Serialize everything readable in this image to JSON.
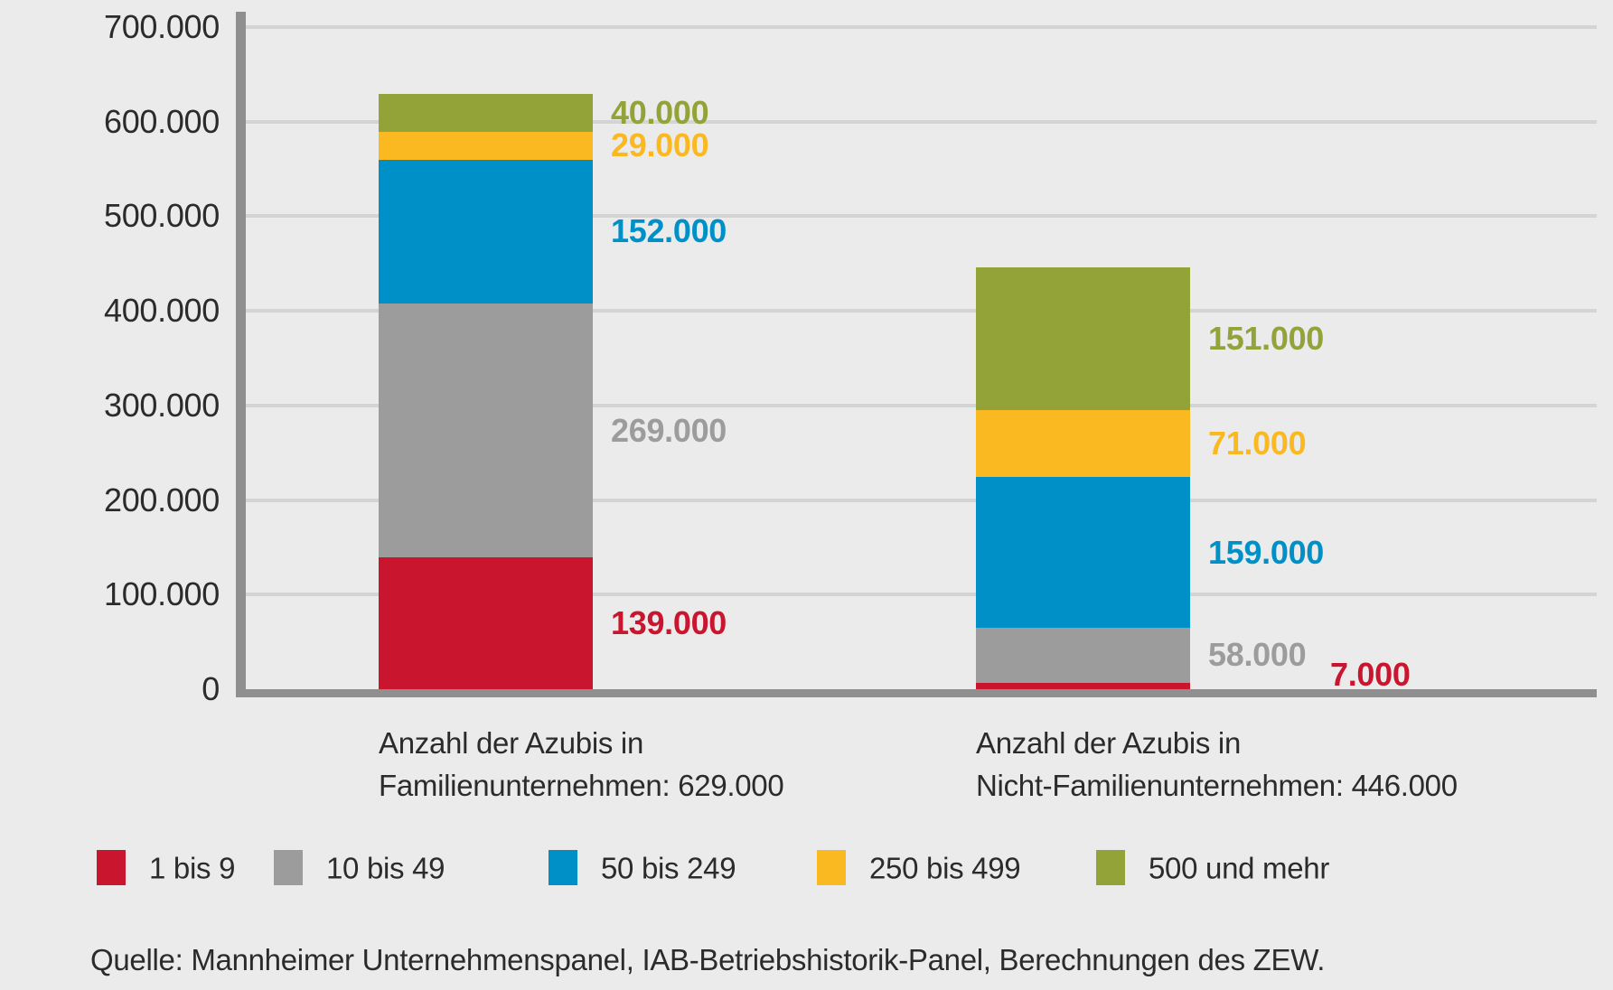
{
  "colors": {
    "background": "#ebebeb",
    "axis": "#8f8f8f",
    "gridline": "#d4d4d4",
    "text": "#2b2b2b"
  },
  "chart_data": {
    "type": "bar",
    "subtype": "stacked-vertical",
    "title": "",
    "grid": "horizontal-on",
    "y_axis": {
      "min": 0,
      "max": 700000,
      "tick_step": 100000,
      "tick_labels": [
        "0",
        "100.000",
        "200.000",
        "300.000",
        "400.000",
        "500.000",
        "600.000",
        "700.000"
      ]
    },
    "categories": [
      {
        "label_line1": "Anzahl der Azubis in",
        "label_line2": "Familienunternehmen: 629.000",
        "total": 629000
      },
      {
        "label_line1": "Anzahl der Azubis in",
        "label_line2": "Nicht-Familienunternehmen: 446.000",
        "total": 446000
      }
    ],
    "series": [
      {
        "name": "1 bis 9",
        "color": "#c9162e",
        "values": [
          139000,
          7000
        ],
        "value_labels": [
          "139.000",
          "7.000"
        ]
      },
      {
        "name": "10 bis 49",
        "color": "#9c9c9c",
        "values": [
          269000,
          58000
        ],
        "value_labels": [
          "269.000",
          "58.000"
        ]
      },
      {
        "name": "50 bis 249",
        "color": "#0090c8",
        "values": [
          152000,
          159000
        ],
        "value_labels": [
          "152.000",
          "159.000"
        ]
      },
      {
        "name": "250 bis 499",
        "color": "#fab821",
        "values": [
          29000,
          71000
        ],
        "value_labels": [
          "29.000",
          "71.000"
        ]
      },
      {
        "name": "500 und mehr",
        "color": "#94a338",
        "values": [
          40000,
          151000
        ],
        "value_labels": [
          "40.000",
          "151.000"
        ]
      }
    ],
    "legend": {
      "position": "bottom",
      "entries": [
        "1 bis 9",
        "10 bis 49",
        "50 bis 249",
        "250 bis 499",
        "500 und mehr"
      ]
    },
    "source": "Quelle: Mannheimer Unternehmenspanel, IAB-Betriebshistorik-Panel, Berechnungen des ZEW."
  }
}
